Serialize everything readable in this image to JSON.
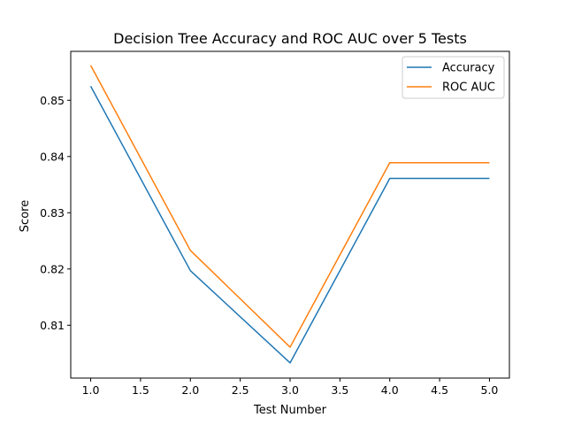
{
  "chart_data": {
    "type": "line",
    "title": "Decision Tree Accuracy and ROC AUC over 5 Tests",
    "xlabel": "Test Number",
    "ylabel": "Score",
    "x": [
      1,
      2,
      3,
      4,
      5
    ],
    "xlim": [
      0.8,
      5.2
    ],
    "ylim": [
      0.8006,
      0.8587
    ],
    "xticks": [
      "1.0",
      "1.5",
      "2.0",
      "2.5",
      "3.0",
      "3.5",
      "4.0",
      "4.5",
      "5.0"
    ],
    "yticks": [
      "0.81",
      "0.82",
      "0.83",
      "0.84",
      "0.85"
    ],
    "grid": false,
    "legend": "upper right",
    "series": [
      {
        "name": "Accuracy",
        "color": "#1f77b4",
        "values": [
          0.8525,
          0.8197,
          0.8033,
          0.8361,
          0.8361
        ]
      },
      {
        "name": "ROC AUC",
        "color": "#ff7f0e",
        "values": [
          0.8562,
          0.8233,
          0.8061,
          0.8389,
          0.8389
        ]
      }
    ]
  }
}
